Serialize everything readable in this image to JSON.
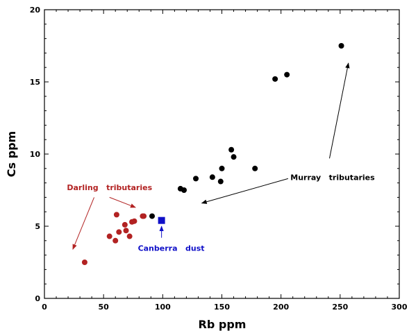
{
  "chart_data": {
    "type": "scatter",
    "title": "",
    "xlabel": "Rb ppm",
    "ylabel": "Cs ppm",
    "xlim": [
      0,
      300
    ],
    "ylim": [
      0,
      20
    ],
    "x_ticks": [
      0,
      50,
      100,
      150,
      200,
      250,
      300
    ],
    "y_ticks": [
      0,
      5,
      10,
      15,
      20
    ],
    "grid": false,
    "legend": "none",
    "series": [
      {
        "color": "#b22222",
        "marker": "circle",
        "points": [
          {
            "x": 34,
            "y": 2.5
          },
          {
            "x": 55,
            "y": 4.3
          },
          {
            "x": 60,
            "y": 4.0
          },
          {
            "x": 61,
            "y": 5.8
          },
          {
            "x": 63,
            "y": 4.6
          },
          {
            "x": 68,
            "y": 5.1
          },
          {
            "x": 69,
            "y": 4.7
          },
          {
            "x": 72,
            "y": 4.3
          },
          {
            "x": 74,
            "y": 5.3
          },
          {
            "x": 76,
            "y": 5.35
          },
          {
            "x": 83,
            "y": 5.7
          },
          {
            "x": 84,
            "y": 5.7
          }
        ]
      },
      {
        "color": "#000000",
        "marker": "circle",
        "points": [
          {
            "x": 91,
            "y": 5.7
          },
          {
            "x": 115,
            "y": 7.6
          },
          {
            "x": 118,
            "y": 7.5
          },
          {
            "x": 128,
            "y": 8.3
          },
          {
            "x": 142,
            "y": 8.4
          },
          {
            "x": 149,
            "y": 8.1
          },
          {
            "x": 150,
            "y": 9.0
          },
          {
            "x": 158,
            "y": 10.3
          },
          {
            "x": 160,
            "y": 9.8
          },
          {
            "x": 178,
            "y": 9.0
          },
          {
            "x": 195,
            "y": 15.2
          },
          {
            "x": 205,
            "y": 15.5
          },
          {
            "x": 251,
            "y": 17.5
          }
        ]
      },
      {
        "color": "#1010c8",
        "marker": "square",
        "points": [
          {
            "x": 99,
            "y": 5.4
          }
        ]
      }
    ],
    "annotations": [
      {
        "text": "Darling   tributaries",
        "color": "#b22222",
        "x": 19,
        "y": 7.5,
        "arrows": [
          {
            "from": [
              42,
              7.0
            ],
            "to": [
              24,
              3.4
            ]
          },
          {
            "from": [
              55,
              7.0
            ],
            "to": [
              77,
              6.3
            ]
          }
        ]
      },
      {
        "text": "Murray   tributaries",
        "color": "#000000",
        "x": 208,
        "y": 8.2,
        "arrows": [
          {
            "from": [
              241,
              9.7
            ],
            "to": [
              257,
              16.3
            ]
          },
          {
            "from": [
              206,
              8.3
            ],
            "to": [
              133,
              6.6
            ]
          }
        ]
      },
      {
        "text": "Canberra   dust",
        "color": "#1010c8",
        "x": 79,
        "y": 3.3,
        "arrows": [
          {
            "from": [
              99,
              4.2
            ],
            "to": [
              99,
              5.0
            ]
          }
        ]
      }
    ]
  }
}
